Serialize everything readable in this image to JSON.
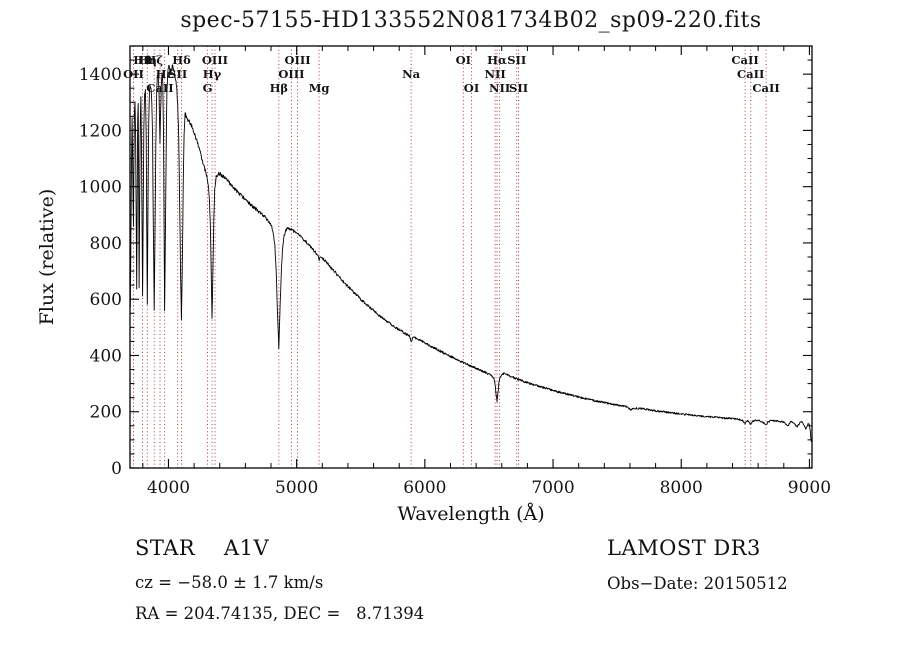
{
  "title": "spec-57155-HD133552N081734B02_sp09-220.fits",
  "footer": {
    "class_label": "STAR    A1V",
    "cz": "cz = −58.0 ± 1.7 km/s",
    "radec": "RA = 204.74135, DEC =   8.71394",
    "survey": "LAMOST DR3",
    "obs_date": "Obs−Date: 20150512"
  },
  "chart_data": {
    "type": "line",
    "title": "spec-57155-HD133552N081734B02_sp09-220.fits",
    "xlabel": "Wavelength (Å)",
    "ylabel": "Flux (relative)",
    "xlim": [
      3700,
      9020
    ],
    "ylim": [
      0,
      1500
    ],
    "x_ticks": [
      4000,
      5000,
      6000,
      7000,
      8000,
      9000
    ],
    "y_ticks": [
      0,
      200,
      400,
      600,
      800,
      1000,
      1200,
      1400
    ],
    "grid": false,
    "legend": "none",
    "line_color": "#000000",
    "marker_color": "#9e2b2b",
    "spectral_lines": [
      {
        "wavelength": 3727,
        "label": "OII",
        "row": 2
      },
      {
        "wavelength": 3798,
        "label": "Hθ",
        "row": 1
      },
      {
        "wavelength": 3835,
        "label": "Hη",
        "row": 1
      },
      {
        "wavelength": 3889,
        "label": "Hζ",
        "row": 1
      },
      {
        "wavelength": 3934,
        "label": "CaII",
        "row": 3
      },
      {
        "wavelength": 3970,
        "label": "Hε",
        "row": 2
      },
      {
        "wavelength": 4072,
        "label": "SII",
        "row": 2
      },
      {
        "wavelength": 4102,
        "label": "Hδ",
        "row": 1
      },
      {
        "wavelength": 4305,
        "label": "G",
        "row": 3
      },
      {
        "wavelength": 4340,
        "label": "Hγ",
        "row": 2
      },
      {
        "wavelength": 4363,
        "label": "OIII",
        "row": 1
      },
      {
        "wavelength": 4861,
        "label": "Hβ",
        "row": 3
      },
      {
        "wavelength": 4959,
        "label": "OIII",
        "row": 2
      },
      {
        "wavelength": 5007,
        "label": "OIII",
        "row": 1
      },
      {
        "wavelength": 5175,
        "label": "Mg",
        "row": 3
      },
      {
        "wavelength": 5893,
        "label": "Na",
        "row": 2
      },
      {
        "wavelength": 6300,
        "label": "OI",
        "row": 1
      },
      {
        "wavelength": 6364,
        "label": "OI",
        "row": 3
      },
      {
        "wavelength": 6548,
        "label": "NII",
        "row": 2
      },
      {
        "wavelength": 6563,
        "label": "Hα",
        "row": 1
      },
      {
        "wavelength": 6583,
        "label": "NII",
        "row": 3
      },
      {
        "wavelength": 6717,
        "label": "SII",
        "row": 1
      },
      {
        "wavelength": 6731,
        "label": "SII",
        "row": 3
      },
      {
        "wavelength": 8498,
        "label": "CaII",
        "row": 1
      },
      {
        "wavelength": 8542,
        "label": "CaII",
        "row": 2
      },
      {
        "wavelength": 8662,
        "label": "CaII",
        "row": 3
      }
    ],
    "spectrum_points": [
      [
        3702,
        570
      ],
      [
        3706,
        760
      ],
      [
        3711,
        1050
      ],
      [
        3716,
        1240
      ],
      [
        3720,
        1120
      ],
      [
        3724,
        930
      ],
      [
        3727,
        860
      ],
      [
        3730,
        1040
      ],
      [
        3734,
        1260
      ],
      [
        3739,
        1300
      ],
      [
        3744,
        1180
      ],
      [
        3748,
        880
      ],
      [
        3752,
        640
      ],
      [
        3756,
        940
      ],
      [
        3760,
        1240
      ],
      [
        3764,
        1290
      ],
      [
        3768,
        1000
      ],
      [
        3771,
        640
      ],
      [
        3775,
        900
      ],
      [
        3780,
        1230
      ],
      [
        3785,
        1320
      ],
      [
        3790,
        1140
      ],
      [
        3794,
        840
      ],
      [
        3798,
        610
      ],
      [
        3803,
        900
      ],
      [
        3808,
        1200
      ],
      [
        3814,
        1330
      ],
      [
        3820,
        1340
      ],
      [
        3826,
        1180
      ],
      [
        3830,
        880
      ],
      [
        3835,
        580
      ],
      [
        3840,
        900
      ],
      [
        3846,
        1230
      ],
      [
        3852,
        1340
      ],
      [
        3858,
        1360
      ],
      [
        3864,
        1350
      ],
      [
        3870,
        1300
      ],
      [
        3876,
        1180
      ],
      [
        3882,
        860
      ],
      [
        3889,
        565
      ],
      [
        3895,
        830
      ],
      [
        3901,
        1150
      ],
      [
        3908,
        1330
      ],
      [
        3914,
        1390
      ],
      [
        3920,
        1400
      ],
      [
        3926,
        1330
      ],
      [
        3930,
        1240
      ],
      [
        3934,
        1160
      ],
      [
        3938,
        1250
      ],
      [
        3944,
        1360
      ],
      [
        3950,
        1410
      ],
      [
        3956,
        1370
      ],
      [
        3961,
        1200
      ],
      [
        3965,
        900
      ],
      [
        3970,
        555
      ],
      [
        3976,
        830
      ],
      [
        3982,
        1140
      ],
      [
        3988,
        1330
      ],
      [
        3994,
        1410
      ],
      [
        4000,
        1430
      ],
      [
        4008,
        1425
      ],
      [
        4016,
        1410
      ],
      [
        4024,
        1415
      ],
      [
        4032,
        1430
      ],
      [
        4040,
        1420
      ],
      [
        4048,
        1400
      ],
      [
        4056,
        1380
      ],
      [
        4064,
        1350
      ],
      [
        4072,
        1290
      ],
      [
        4080,
        1180
      ],
      [
        4087,
        950
      ],
      [
        4094,
        700
      ],
      [
        4101,
        525
      ],
      [
        4108,
        720
      ],
      [
        4115,
        1000
      ],
      [
        4122,
        1180
      ],
      [
        4130,
        1260
      ],
      [
        4140,
        1245
      ],
      [
        4152,
        1238
      ],
      [
        4164,
        1230
      ],
      [
        4176,
        1220
      ],
      [
        4188,
        1207
      ],
      [
        4200,
        1193
      ],
      [
        4215,
        1173
      ],
      [
        4230,
        1150
      ],
      [
        4245,
        1126
      ],
      [
        4260,
        1101
      ],
      [
        4275,
        1076
      ],
      [
        4290,
        1052
      ],
      [
        4304,
        1028
      ],
      [
        4312,
        1000
      ],
      [
        4320,
        950
      ],
      [
        4328,
        840
      ],
      [
        4334,
        680
      ],
      [
        4340,
        528
      ],
      [
        4347,
        700
      ],
      [
        4354,
        890
      ],
      [
        4361,
        990
      ],
      [
        4370,
        1030
      ],
      [
        4380,
        1042
      ],
      [
        4395,
        1046
      ],
      [
        4410,
        1043
      ],
      [
        4430,
        1035
      ],
      [
        4450,
        1026
      ],
      [
        4470,
        1016
      ],
      [
        4490,
        1006
      ],
      [
        4510,
        996
      ],
      [
        4530,
        986
      ],
      [
        4550,
        977
      ],
      [
        4570,
        968
      ],
      [
        4590,
        959
      ],
      [
        4610,
        950
      ],
      [
        4630,
        941
      ],
      [
        4650,
        933
      ],
      [
        4670,
        925
      ],
      [
        4690,
        917
      ],
      [
        4710,
        909
      ],
      [
        4730,
        901
      ],
      [
        4750,
        893
      ],
      [
        4770,
        884
      ],
      [
        4790,
        872
      ],
      [
        4805,
        858
      ],
      [
        4818,
        835
      ],
      [
        4830,
        790
      ],
      [
        4840,
        700
      ],
      [
        4850,
        560
      ],
      [
        4861,
        425
      ],
      [
        4872,
        590
      ],
      [
        4882,
        720
      ],
      [
        4892,
        790
      ],
      [
        4902,
        825
      ],
      [
        4915,
        845
      ],
      [
        4930,
        852
      ],
      [
        4945,
        850
      ],
      [
        4960,
        846
      ],
      [
        4980,
        841
      ],
      [
        5000,
        836
      ],
      [
        5025,
        826
      ],
      [
        5050,
        815
      ],
      [
        5075,
        803
      ],
      [
        5100,
        790
      ],
      [
        5125,
        777
      ],
      [
        5150,
        764
      ],
      [
        5165,
        756
      ],
      [
        5175,
        742
      ],
      [
        5188,
        752
      ],
      [
        5205,
        745
      ],
      [
        5230,
        732
      ],
      [
        5255,
        719
      ],
      [
        5280,
        706
      ],
      [
        5305,
        693
      ],
      [
        5330,
        680
      ],
      [
        5355,
        667
      ],
      [
        5380,
        655
      ],
      [
        5405,
        643
      ],
      [
        5430,
        631
      ],
      [
        5455,
        620
      ],
      [
        5480,
        609
      ],
      [
        5505,
        598
      ],
      [
        5530,
        587
      ],
      [
        5555,
        577
      ],
      [
        5580,
        567
      ],
      [
        5605,
        557
      ],
      [
        5630,
        548
      ],
      [
        5655,
        539
      ],
      [
        5680,
        530
      ],
      [
        5705,
        521
      ],
      [
        5730,
        513
      ],
      [
        5755,
        505
      ],
      [
        5780,
        497
      ],
      [
        5805,
        490
      ],
      [
        5830,
        483
      ],
      [
        5855,
        476
      ],
      [
        5880,
        470
      ],
      [
        5893,
        448
      ],
      [
        5906,
        466
      ],
      [
        5930,
        462
      ],
      [
        5955,
        456
      ],
      [
        5980,
        450
      ],
      [
        6005,
        444
      ],
      [
        6030,
        437
      ],
      [
        6055,
        431
      ],
      [
        6080,
        425
      ],
      [
        6105,
        419
      ],
      [
        6130,
        413
      ],
      [
        6155,
        407
      ],
      [
        6180,
        401
      ],
      [
        6205,
        396
      ],
      [
        6230,
        390
      ],
      [
        6255,
        385
      ],
      [
        6280,
        379
      ],
      [
        6300,
        374
      ],
      [
        6325,
        369
      ],
      [
        6350,
        364
      ],
      [
        6375,
        359
      ],
      [
        6400,
        354
      ],
      [
        6425,
        349
      ],
      [
        6450,
        344
      ],
      [
        6475,
        339
      ],
      [
        6500,
        334
      ],
      [
        6515,
        330
      ],
      [
        6530,
        324
      ],
      [
        6540,
        315
      ],
      [
        6548,
        298
      ],
      [
        6556,
        262
      ],
      [
        6563,
        236
      ],
      [
        6570,
        264
      ],
      [
        6577,
        300
      ],
      [
        6586,
        320
      ],
      [
        6598,
        330
      ],
      [
        6615,
        336
      ],
      [
        6640,
        332
      ],
      [
        6670,
        326
      ],
      [
        6700,
        320
      ],
      [
        6730,
        315
      ],
      [
        6760,
        310
      ],
      [
        6790,
        305
      ],
      [
        6820,
        300
      ],
      [
        6850,
        296
      ],
      [
        6880,
        292
      ],
      [
        6910,
        288
      ],
      [
        6940,
        284
      ],
      [
        6970,
        280
      ],
      [
        7000,
        276
      ],
      [
        7035,
        271
      ],
      [
        7070,
        267
      ],
      [
        7105,
        263
      ],
      [
        7140,
        259
      ],
      [
        7175,
        255
      ],
      [
        7210,
        251
      ],
      [
        7245,
        247
      ],
      [
        7280,
        244
      ],
      [
        7315,
        240
      ],
      [
        7350,
        237
      ],
      [
        7385,
        234
      ],
      [
        7420,
        231
      ],
      [
        7455,
        228
      ],
      [
        7490,
        225
      ],
      [
        7525,
        222
      ],
      [
        7560,
        219
      ],
      [
        7585,
        215
      ],
      [
        7600,
        209
      ],
      [
        7612,
        206
      ],
      [
        7625,
        211
      ],
      [
        7650,
        213
      ],
      [
        7685,
        211
      ],
      [
        7720,
        209
      ],
      [
        7755,
        206
      ],
      [
        7790,
        204
      ],
      [
        7825,
        202
      ],
      [
        7860,
        200
      ],
      [
        7895,
        198
      ],
      [
        7930,
        196
      ],
      [
        7965,
        194
      ],
      [
        8000,
        192
      ],
      [
        8040,
        190
      ],
      [
        8080,
        188
      ],
      [
        8120,
        186
      ],
      [
        8160,
        184
      ],
      [
        8200,
        183
      ],
      [
        8240,
        181
      ],
      [
        8280,
        180
      ],
      [
        8320,
        178
      ],
      [
        8360,
        177
      ],
      [
        8400,
        175
      ],
      [
        8440,
        174
      ],
      [
        8470,
        171
      ],
      [
        8484,
        166
      ],
      [
        8498,
        157
      ],
      [
        8512,
        168
      ],
      [
        8527,
        166
      ],
      [
        8542,
        155
      ],
      [
        8556,
        167
      ],
      [
        8580,
        170
      ],
      [
        8605,
        169
      ],
      [
        8630,
        165
      ],
      [
        8648,
        158
      ],
      [
        8662,
        152
      ],
      [
        8676,
        164
      ],
      [
        8700,
        168
      ],
      [
        8725,
        169
      ],
      [
        8750,
        167
      ],
      [
        8775,
        165
      ],
      [
        8800,
        163
      ],
      [
        8815,
        156
      ],
      [
        8830,
        149
      ],
      [
        8845,
        158
      ],
      [
        8860,
        166
      ],
      [
        8875,
        162
      ],
      [
        8890,
        154
      ],
      [
        8905,
        147
      ],
      [
        8920,
        157
      ],
      [
        8935,
        165
      ],
      [
        8950,
        159
      ],
      [
        8962,
        148
      ],
      [
        8972,
        139
      ],
      [
        8982,
        151
      ],
      [
        8992,
        160
      ],
      [
        9000,
        152
      ],
      [
        9006,
        132
      ],
      [
        9011,
        108
      ],
      [
        9015,
        92
      ]
    ]
  }
}
